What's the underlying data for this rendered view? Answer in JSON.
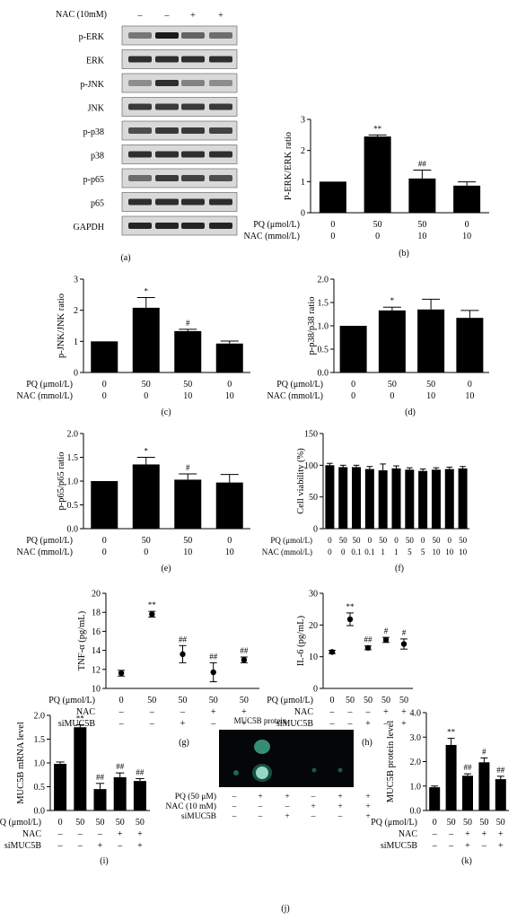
{
  "blot_a": {
    "condition_label": "NAC (10mM)",
    "lane_marks": [
      "–",
      "–",
      "+",
      "+"
    ],
    "bands": [
      "p-ERK",
      "ERK",
      "p-JNK",
      "JNK",
      "p-p38",
      "p38",
      "p-p65",
      "p65",
      "GAPDH"
    ],
    "panel_label": "(a)"
  },
  "blot_j": {
    "title": "MUC5B protein",
    "rows": [
      {
        "label": "PQ (50 μM)",
        "marks": [
          "–",
          "+",
          "+",
          "–",
          "+",
          "+"
        ]
      },
      {
        "label": "NAC (10 mM)",
        "marks": [
          "–",
          "–",
          "–",
          "+",
          "+",
          "+"
        ]
      },
      {
        "label": "siMUC5B",
        "marks": [
          "–",
          "–",
          "+",
          "–",
          "–",
          "+"
        ]
      }
    ],
    "panel_label": "(j)"
  },
  "chart_data": [
    {
      "id": "b",
      "type": "bar",
      "panel_label": "(b)",
      "ylabel": "P-ERK/ERK ratio",
      "ylim": [
        0,
        3
      ],
      "yticks": [
        "0",
        "1",
        "2",
        "3"
      ],
      "values": [
        1.0,
        2.45,
        1.1,
        0.87
      ],
      "errors": [
        0,
        0.05,
        0.27,
        0.12
      ],
      "annotations": [
        "",
        "**",
        "##",
        ""
      ],
      "conditions": [
        {
          "label": "PQ (μmol/L)",
          "values": [
            "0",
            "50",
            "50",
            "0"
          ]
        },
        {
          "label": "NAC (mmol/L)",
          "values": [
            "0",
            "0",
            "10",
            "10"
          ]
        }
      ]
    },
    {
      "id": "c",
      "type": "bar",
      "panel_label": "(c)",
      "ylabel": "p-JNK/JNK ratio",
      "ylim": [
        0,
        3
      ],
      "yticks": [
        "0",
        "1",
        "2",
        "3"
      ],
      "values": [
        1.0,
        2.08,
        1.33,
        0.93
      ],
      "errors": [
        0,
        0.33,
        0.06,
        0.08
      ],
      "annotations": [
        "",
        "*",
        "#",
        ""
      ],
      "conditions": [
        {
          "label": "PQ (μmol/L)",
          "values": [
            "0",
            "50",
            "50",
            "0"
          ]
        },
        {
          "label": "NAC (mmol/L)",
          "values": [
            "0",
            "0",
            "10",
            "10"
          ]
        }
      ]
    },
    {
      "id": "d",
      "type": "bar",
      "panel_label": "(d)",
      "ylabel": "p-p38/p38 ratio",
      "ylim": [
        0,
        2
      ],
      "yticks": [
        "0.0",
        "0.5",
        "1.0",
        "1.5",
        "2.0"
      ],
      "values": [
        1.0,
        1.33,
        1.35,
        1.17
      ],
      "errors": [
        0,
        0.07,
        0.22,
        0.16
      ],
      "annotations": [
        "",
        "*",
        "",
        ""
      ],
      "conditions": [
        {
          "label": "PQ (μmol/L)",
          "values": [
            "0",
            "50",
            "50",
            "0"
          ]
        },
        {
          "label": "NAC (mmol/L)",
          "values": [
            "0",
            "0",
            "10",
            "10"
          ]
        }
      ]
    },
    {
      "id": "e",
      "type": "bar",
      "panel_label": "(e)",
      "ylabel": "p-p65/p65 ratio",
      "ylim": [
        0,
        2
      ],
      "yticks": [
        "0.0",
        "0.5",
        "1.0",
        "1.5",
        "2.0"
      ],
      "values": [
        1.0,
        1.35,
        1.03,
        0.97
      ],
      "errors": [
        0,
        0.15,
        0.12,
        0.17
      ],
      "annotations": [
        "",
        "*",
        "#",
        ""
      ],
      "conditions": [
        {
          "label": "PQ (μmol/L)",
          "values": [
            "0",
            "50",
            "50",
            "0"
          ]
        },
        {
          "label": "NAC (mmol/L)",
          "values": [
            "0",
            "0",
            "10",
            "10"
          ]
        }
      ]
    },
    {
      "id": "f",
      "type": "bar",
      "panel_label": "(f)",
      "ylabel": "Cell viability (%)",
      "ylim": [
        0,
        150
      ],
      "yticks": [
        "0",
        "50",
        "100",
        "150"
      ],
      "values": [
        100,
        97,
        97,
        94,
        92,
        95,
        93,
        91,
        93,
        94,
        95
      ],
      "errors": [
        3,
        3,
        3,
        4,
        10,
        4,
        3,
        3,
        3,
        3,
        3
      ],
      "annotations": [],
      "conditions": [
        {
          "label": "PQ (μmol/L)",
          "values": [
            "0",
            "50",
            "50",
            "0",
            "50",
            "0",
            "50",
            "0",
            "50",
            "0",
            "50"
          ]
        },
        {
          "label": "NAC (mmol/L)",
          "values": [
            "0",
            "0",
            "0.1",
            "0.1",
            "1",
            "1",
            "5",
            "5",
            "10",
            "10",
            "10"
          ]
        }
      ]
    },
    {
      "id": "g",
      "type": "scatter",
      "panel_label": "(g)",
      "ylabel": "TNF-α (pg/mL)",
      "ylim": [
        10,
        20
      ],
      "yticks": [
        "10",
        "12",
        "14",
        "16",
        "18",
        "20"
      ],
      "values": [
        11.6,
        17.8,
        13.6,
        11.7,
        13.0
      ],
      "errors": [
        0.3,
        0.3,
        0.9,
        1.0,
        0.3
      ],
      "annotations": [
        "",
        "**",
        "##",
        "##",
        "##"
      ],
      "conditions": [
        {
          "label": "PQ (μmol/L)",
          "values": [
            "0",
            "50",
            "50",
            "50",
            "50"
          ]
        },
        {
          "label": "NAC",
          "values": [
            "–",
            "–",
            "–",
            "+",
            "+"
          ]
        },
        {
          "label": "siMUC5B",
          "values": [
            "–",
            "–",
            "+",
            "–",
            "+"
          ]
        }
      ]
    },
    {
      "id": "h",
      "type": "scatter",
      "panel_label": "(h)",
      "ylabel": "IL-6 (pg/mL)",
      "ylim": [
        0,
        30
      ],
      "yticks": [
        "0",
        "10",
        "20",
        "30"
      ],
      "values": [
        11.5,
        21.8,
        12.8,
        15.3,
        14.0
      ],
      "errors": [
        0.5,
        2.0,
        0.6,
        0.8,
        1.6
      ],
      "annotations": [
        "",
        "**",
        "##",
        "#",
        "#"
      ],
      "conditions": [
        {
          "label": "PQ (μmol/L)",
          "values": [
            "0",
            "50",
            "50",
            "50",
            "50"
          ]
        },
        {
          "label": "NAC",
          "values": [
            "–",
            "–",
            "–",
            "+",
            "+"
          ]
        },
        {
          "label": "siMUC5B",
          "values": [
            "–",
            "–",
            "+",
            "–",
            "+"
          ]
        }
      ]
    },
    {
      "id": "i",
      "type": "bar",
      "panel_label": "(i)",
      "ylabel": "MUC5B mRNA level",
      "ylim": [
        0,
        2
      ],
      "yticks": [
        "0.0",
        "0.5",
        "1.0",
        "1.5",
        "2.0"
      ],
      "values": [
        0.98,
        1.75,
        0.45,
        0.7,
        0.62
      ],
      "errors": [
        0.04,
        0.05,
        0.12,
        0.09,
        0.05
      ],
      "annotations": [
        "",
        "**",
        "##",
        "##",
        "##"
      ],
      "conditions": [
        {
          "label": "PQ (μmol/L)",
          "values": [
            "0",
            "50",
            "50",
            "50",
            "50"
          ]
        },
        {
          "label": "NAC",
          "values": [
            "–",
            "–",
            "–",
            "+",
            "+"
          ]
        },
        {
          "label": "siMUC5B",
          "values": [
            "–",
            "–",
            "+",
            "–",
            "+"
          ]
        }
      ]
    },
    {
      "id": "k",
      "type": "bar",
      "panel_label": "(k)",
      "ylabel": "MUC5B protein level",
      "ylim": [
        0,
        4
      ],
      "yticks": [
        "0.0",
        "1.0",
        "2.0",
        "3.0",
        "4.0"
      ],
      "values": [
        0.95,
        2.68,
        1.42,
        1.97,
        1.28
      ],
      "errors": [
        0.05,
        0.27,
        0.08,
        0.18,
        0.12
      ],
      "annotations": [
        "",
        "**",
        "##",
        "#",
        "##"
      ],
      "conditions": [
        {
          "label": "PQ (μmol/L)",
          "values": [
            "0",
            "50",
            "50",
            "50",
            "50"
          ]
        },
        {
          "label": "NAC",
          "values": [
            "–",
            "–",
            "+",
            "+",
            "+"
          ]
        },
        {
          "label": "siMUC5B",
          "values": [
            "–",
            "–",
            "+",
            "–",
            "+"
          ]
        }
      ]
    }
  ]
}
